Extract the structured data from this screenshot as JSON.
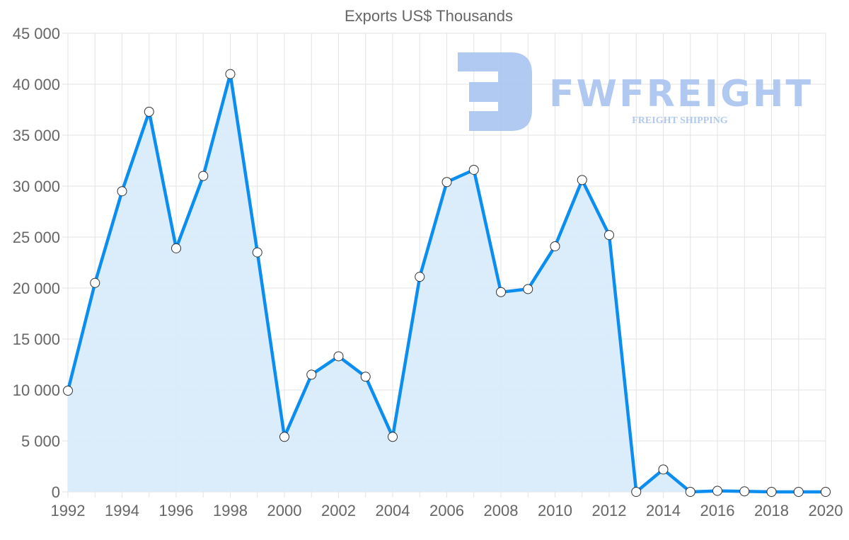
{
  "chart_data": {
    "type": "line",
    "title": "Exports US$ Thousands",
    "xlabel": "",
    "ylabel": "",
    "x": [
      1992,
      1993,
      1994,
      1995,
      1996,
      1997,
      1998,
      1999,
      2000,
      2001,
      2002,
      2003,
      2004,
      2005,
      2006,
      2007,
      2008,
      2009,
      2010,
      2011,
      2012,
      2013,
      2014,
      2015,
      2016,
      2017,
      2018,
      2019,
      2020
    ],
    "series": [
      {
        "name": "Exports US$ Thousands",
        "values": [
          9930,
          20500,
          29500,
          37300,
          23900,
          31000,
          41000,
          23500,
          5400,
          11500,
          13300,
          11300,
          5400,
          21100,
          30400,
          31600,
          19600,
          19900,
          24100,
          30600,
          25200,
          0,
          2200,
          0,
          100,
          50,
          0,
          0,
          0
        ]
      }
    ],
    "ylim": [
      0,
      45000
    ],
    "xlim": [
      1992,
      2020
    ],
    "yticks": [
      "0",
      "5 000",
      "10 000",
      "15 000",
      "20 000",
      "25 000",
      "30 000",
      "35 000",
      "40 000",
      "45 000"
    ],
    "xticks": [
      "1992",
      "1994",
      "1996",
      "1998",
      "2000",
      "2002",
      "2004",
      "2006",
      "2008",
      "2010",
      "2012",
      "2014",
      "2016",
      "2018",
      "2020"
    ],
    "grid": true,
    "legend": "none",
    "colors": {
      "line": "#0b8ef0",
      "fill": "#d9ecfb",
      "grid": "#e3e3e3",
      "watermark": "#a9c4f0"
    }
  },
  "watermark": {
    "brand": "FWFREIGHT",
    "tagline": "FREIGHT SHIPPING"
  }
}
